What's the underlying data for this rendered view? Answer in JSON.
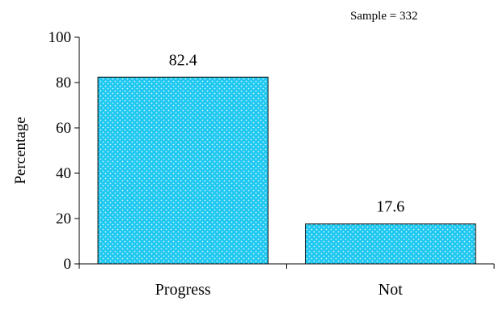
{
  "chart_data": {
    "type": "bar",
    "categories": [
      "Progress",
      "Not"
    ],
    "values": [
      82.4,
      17.6
    ],
    "data_labels": [
      "82.4",
      "17.6"
    ],
    "ylabel": "Percentage",
    "xlabel": "",
    "ylim": [
      0,
      100
    ],
    "yticks": [
      0,
      20,
      40,
      60,
      80,
      100
    ],
    "annotation": "Sample = 332",
    "grid": false,
    "legend": "none",
    "bar_color": "#1ec8f0",
    "bar_pattern_color": "#d8f6ff"
  }
}
